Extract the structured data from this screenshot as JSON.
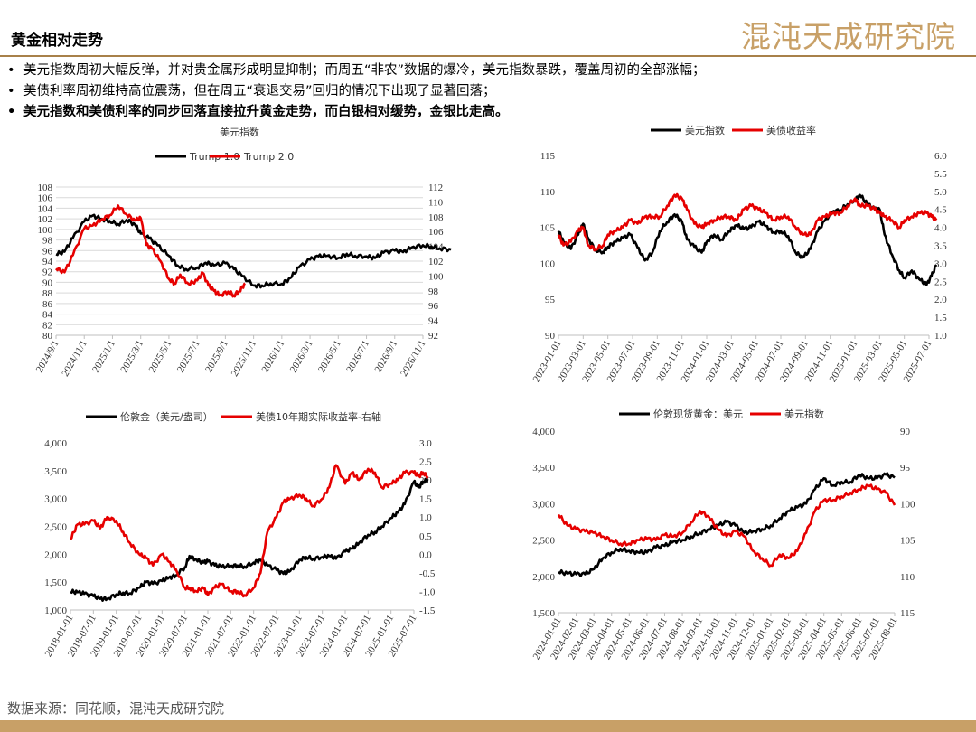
{
  "page": {
    "title": "黄金相对走势",
    "logo": "混沌天成研究院",
    "bullets": [
      "美元指数周初大幅反弹，并对贵金属形成明显抑制；而周五“非农”数据的爆冷，美元指数暴跌，覆盖周初的全部涨幅；",
      "美债利率周初维持高位震荡，但在周五“衰退交易”回归的情况下出现了显著回落；",
      "美元指数和美债利率的同步回落直接拉升黄金走势，而白银相对缓势，金银比走高。"
    ],
    "source": "数据来源：同花顺，混沌天成研究院"
  },
  "colors": {
    "black": "#000000",
    "red": "#e60000",
    "gold": "#c8a067",
    "grid": "#d9d9d9"
  },
  "chart_data": [
    {
      "type": "line",
      "title": "美元指数",
      "legend_position": "top",
      "grid": true,
      "x_ticks": [
        "2024/9/1",
        "2024/11/1",
        "2025/1/1",
        "2025/3/1",
        "2025/5/1",
        "2025/7/1",
        "2025/9/1",
        "2025/11/1",
        "2026/1/1",
        "2026/3/1",
        "2026/5/1",
        "2026/7/1",
        "2026/9/1",
        "2026/11/1"
      ],
      "y_ticks": [
        80,
        82,
        84,
        86,
        88,
        90,
        92,
        94,
        96,
        98,
        100,
        102,
        104,
        106,
        108
      ],
      "y_ticks_right": [
        92,
        94,
        96,
        98,
        100,
        102,
        104,
        106,
        108,
        110,
        112
      ],
      "ylim": [
        80,
        108
      ],
      "ylim_right": [
        92,
        112
      ],
      "series": [
        {
          "name": "Trump 1.0",
          "axis": "left",
          "color": "#000000",
          "x": [
            0,
            0.3,
            0.6,
            1,
            1.3,
            1.6,
            1.9,
            2.2,
            2.5,
            2.8,
            3,
            3.3,
            3.6,
            4,
            4.3,
            4.6,
            5,
            5.3,
            5.6,
            6,
            6.3,
            6.6,
            7,
            7.3,
            7.6,
            8,
            8.3,
            8.6,
            9,
            9.3,
            9.6,
            10,
            10.3,
            10.6,
            11,
            11.3,
            11.6,
            12,
            12.3,
            12.6,
            13,
            13.3,
            13.6,
            14
          ],
          "y": [
            95.3,
            95.8,
            98.4,
            101.5,
            102.6,
            102.0,
            101.6,
            101.0,
            101.8,
            100.9,
            99.2,
            98.3,
            97.0,
            95.0,
            93.2,
            92.5,
            92.8,
            93.7,
            93.2,
            93.6,
            92.5,
            91.2,
            89.4,
            89.4,
            89.8,
            89.7,
            90.8,
            92.8,
            94.3,
            94.9,
            95.0,
            94.6,
            95.4,
            95.0,
            94.9,
            94.6,
            95.6,
            96.0,
            95.7,
            96.6,
            97.0,
            96.8,
            96.4,
            96.2
          ]
        },
        {
          "name": "Trump 2.0",
          "axis": "right",
          "color": "#e60000",
          "x": [
            0,
            0.3,
            0.6,
            1,
            1.3,
            1.6,
            1.9,
            2.2,
            2.5,
            2.8,
            3,
            3.2,
            3.4,
            3.7,
            4,
            4.2,
            4.4,
            4.7,
            5,
            5.2,
            5.4,
            5.6,
            5.8,
            6.1,
            6.3,
            6.5,
            6.7
          ],
          "y": [
            101.0,
            100.5,
            102.8,
            106.4,
            106.8,
            107.6,
            108.2,
            109.5,
            108.3,
            107.5,
            107.8,
            104.2,
            103.7,
            102.0,
            99.6,
            99.0,
            100.2,
            98.9,
            99.4,
            100.4,
            98.7,
            98.0,
            97.4,
            97.9,
            97.4,
            98.0,
            99.0
          ]
        }
      ]
    },
    {
      "type": "line",
      "legend_position": "top",
      "grid": false,
      "x_ticks": [
        "2023-01-01",
        "2023-03-01",
        "2023-05-01",
        "2023-07-01",
        "2023-09-01",
        "2023-11-01",
        "2024-01-01",
        "2024-03-01",
        "2024-05-01",
        "2024-07-01",
        "2024-09-01",
        "2024-11-01",
        "2025-01-01",
        "2025-03-01",
        "2025-05-01",
        "2025-07-01"
      ],
      "y_ticks": [
        90,
        95,
        100,
        105,
        110,
        115
      ],
      "y_ticks_right": [
        "1.0",
        "1.5",
        "2.0",
        "2.5",
        "3.0",
        "3.5",
        "4.0",
        "4.5",
        "5.0",
        "5.5",
        "6.0"
      ],
      "ylim": [
        90,
        115
      ],
      "ylim_right": [
        1.0,
        6.0
      ],
      "series": [
        {
          "name": "美元指数",
          "axis": "left",
          "color": "#000000",
          "x": [
            0,
            0.2,
            0.5,
            0.8,
            1,
            1.2,
            1.5,
            1.8,
            2,
            2.3,
            2.6,
            2.9,
            3.2,
            3.5,
            3.8,
            4.1,
            4.4,
            4.7,
            5,
            5.2,
            5.5,
            5.8,
            6,
            6.3,
            6.6,
            6.9,
            7.2,
            7.5,
            7.8,
            8.1,
            8.4,
            8.7,
            9,
            9.3,
            9.6,
            9.9,
            10.2,
            10.5,
            10.8,
            11.1,
            11.4,
            11.7,
            12,
            12.2,
            12.5,
            12.8,
            13,
            13.2,
            13.5,
            13.8,
            14,
            14.3,
            14.6,
            14.9,
            15.1,
            15.3
          ],
          "y": [
            104.5,
            103.0,
            102.0,
            104.0,
            105.5,
            103.5,
            101.8,
            101.6,
            102.3,
            103.0,
            103.5,
            104.0,
            102.2,
            100.4,
            101.5,
            104.5,
            105.8,
            106.8,
            105.8,
            103.3,
            102.3,
            101.5,
            103.0,
            104.0,
            103.3,
            104.5,
            105.3,
            104.8,
            105.0,
            105.8,
            105.2,
            104.3,
            104.5,
            103.8,
            101.5,
            100.8,
            102.0,
            104.5,
            106.0,
            107.2,
            107.4,
            108.2,
            108.8,
            109.5,
            108.3,
            107.5,
            107.5,
            104.0,
            101.2,
            99.0,
            98.0,
            99.0,
            97.8,
            97.0,
            98.2,
            99.8
          ]
        },
        {
          "name": "美债收益率",
          "axis": "right",
          "color": "#e60000",
          "x": [
            0,
            0.2,
            0.5,
            0.8,
            1,
            1.2,
            1.5,
            1.8,
            2,
            2.3,
            2.6,
            2.9,
            3.2,
            3.5,
            3.8,
            4.1,
            4.4,
            4.7,
            5,
            5.2,
            5.5,
            5.8,
            6,
            6.3,
            6.6,
            6.9,
            7.2,
            7.5,
            7.8,
            8.1,
            8.4,
            8.7,
            9,
            9.3,
            9.6,
            9.9,
            10.2,
            10.5,
            10.8,
            11.1,
            11.4,
            11.7,
            12,
            12.2,
            12.5,
            12.8,
            13,
            13.2,
            13.5,
            13.8,
            14,
            14.3,
            14.6,
            14.9,
            15.1,
            15.3
          ],
          "y": [
            3.8,
            3.5,
            3.6,
            3.9,
            4.0,
            3.5,
            3.4,
            3.5,
            3.8,
            3.9,
            4.0,
            4.2,
            4.1,
            4.3,
            4.3,
            4.3,
            4.6,
            4.9,
            4.8,
            4.5,
            4.1,
            4.0,
            4.1,
            4.2,
            4.3,
            4.3,
            4.2,
            4.5,
            4.6,
            4.5,
            4.4,
            4.2,
            4.3,
            4.3,
            4.0,
            3.8,
            3.8,
            4.2,
            4.3,
            4.4,
            4.4,
            4.6,
            4.8,
            4.6,
            4.6,
            4.5,
            4.4,
            4.3,
            4.2,
            4.0,
            4.2,
            4.3,
            4.4,
            4.4,
            4.3,
            4.2
          ]
        }
      ]
    },
    {
      "type": "line",
      "legend_position": "top",
      "grid": false,
      "x_ticks": [
        "2018-01-01",
        "2018-07-01",
        "2019-01-01",
        "2019-07-01",
        "2020-01-01",
        "2020-07-01",
        "2021-01-01",
        "2021-07-01",
        "2022-01-01",
        "2022-07-01",
        "2023-01-01",
        "2023-07-01",
        "2024-01-01",
        "2024-07-01",
        "2025-01-01",
        "2025-07-01"
      ],
      "y_ticks": [
        "1,000",
        "1,500",
        "2,000",
        "2,500",
        "3,000",
        "3,500",
        "4,000"
      ],
      "y_ticks_right": [
        "-1.5",
        "-1.0",
        "-0.5",
        "0.0",
        "0.5",
        "1.0",
        "1.5",
        "2.0",
        "2.5",
        "3.0"
      ],
      "ylim": [
        1000,
        4000
      ],
      "ylim_right": [
        -1.5,
        3.0
      ],
      "series": [
        {
          "name": "伦敦金（美元/盎司）",
          "axis": "left",
          "color": "#000000",
          "x": [
            0,
            0.3,
            0.6,
            1,
            1.3,
            1.6,
            2,
            2.3,
            2.6,
            3,
            3.3,
            3.6,
            4,
            4.3,
            4.6,
            5,
            5.2,
            5.5,
            5.8,
            6,
            6.3,
            6.6,
            7,
            7.3,
            7.6,
            8,
            8.3,
            8.6,
            9,
            9.3,
            9.6,
            10,
            10.3,
            10.6,
            11,
            11.3,
            11.6,
            12,
            12.3,
            12.6,
            13,
            13.3,
            13.6,
            14,
            14.3,
            14.6,
            15,
            15.2,
            15.4,
            15.6
          ],
          "y": [
            1330,
            1320,
            1290,
            1250,
            1200,
            1200,
            1280,
            1310,
            1300,
            1400,
            1500,
            1470,
            1520,
            1580,
            1620,
            1770,
            1970,
            1900,
            1850,
            1870,
            1800,
            1780,
            1790,
            1800,
            1780,
            1850,
            1900,
            1800,
            1720,
            1650,
            1700,
            1900,
            1950,
            1920,
            1950,
            1970,
            1920,
            2050,
            2100,
            2200,
            2350,
            2400,
            2500,
            2650,
            2750,
            2900,
            3300,
            3200,
            3300,
            3350
          ]
        },
        {
          "name": "美债10年期实际收益率-右轴",
          "axis": "right",
          "color": "#e60000",
          "x": [
            0,
            0.3,
            0.6,
            1,
            1.3,
            1.6,
            2,
            2.3,
            2.6,
            3,
            3.3,
            3.6,
            4,
            4.3,
            4.6,
            5,
            5.2,
            5.5,
            5.8,
            6,
            6.3,
            6.6,
            7,
            7.3,
            7.6,
            8,
            8.3,
            8.6,
            9,
            9.3,
            9.6,
            10,
            10.3,
            10.6,
            11,
            11.3,
            11.6,
            12,
            12.3,
            12.6,
            13,
            13.3,
            13.6,
            14,
            14.3,
            14.6,
            15,
            15.2,
            15.4,
            15.6
          ],
          "y": [
            0.4,
            0.8,
            0.8,
            0.9,
            0.7,
            1.0,
            0.9,
            0.6,
            0.3,
            0.0,
            -0.1,
            -0.3,
            0.0,
            -0.2,
            -0.4,
            -0.9,
            -0.9,
            -1.0,
            -0.9,
            -1.1,
            -0.9,
            -0.8,
            -1.0,
            -1.0,
            -1.1,
            -0.9,
            -0.5,
            0.6,
            1.0,
            1.4,
            1.5,
            1.6,
            1.5,
            1.3,
            1.5,
            1.8,
            2.4,
            1.9,
            2.2,
            2.0,
            2.3,
            2.2,
            1.8,
            1.9,
            2.0,
            2.2,
            2.2,
            2.1,
            2.2,
            2.1
          ]
        }
      ]
    },
    {
      "type": "line",
      "legend_position": "top",
      "grid": false,
      "x_ticks": [
        "2024-01-01",
        "2024-02-01",
        "2024-03-01",
        "2024-04-01",
        "2024-05-01",
        "2024-06-01",
        "2024-07-01",
        "2024-08-01",
        "2024-09-01",
        "2024-10-01",
        "2024-11-01",
        "2024-12-01",
        "2025-01-01",
        "2025-02-01",
        "2025-03-01",
        "2025-04-01",
        "2025-05-01",
        "2025-06-01",
        "2025-07-01",
        "2025-08-01"
      ],
      "y_ticks": [
        "1,500",
        "2,000",
        "2,500",
        "3,000",
        "3,500",
        "4,000"
      ],
      "y_ticks_right": [
        "90",
        "95",
        "100",
        "105",
        "110",
        "115"
      ],
      "ylim": [
        1500,
        4000
      ],
      "ylim_right": [
        115,
        90
      ],
      "series": [
        {
          "name": "伦敦现货黄金：美元",
          "axis": "left",
          "color": "#000000",
          "x": [
            0,
            0.5,
            1,
            1.5,
            2,
            2.5,
            3,
            3.5,
            4,
            4.5,
            5,
            5.5,
            6,
            6.5,
            7,
            7.5,
            8,
            8.5,
            9,
            9.5,
            10,
            10.5,
            11,
            11.5,
            12,
            12.5,
            13,
            13.5,
            14,
            14.5,
            15,
            15.5,
            16,
            16.5,
            17,
            17.5,
            18,
            18.5,
            19
          ],
          "y": [
            2060,
            2040,
            2030,
            2030,
            2100,
            2250,
            2330,
            2380,
            2350,
            2330,
            2330,
            2400,
            2420,
            2480,
            2500,
            2550,
            2600,
            2650,
            2700,
            2750,
            2700,
            2600,
            2620,
            2650,
            2700,
            2800,
            2900,
            2950,
            3000,
            3200,
            3350,
            3250,
            3300,
            3300,
            3400,
            3350,
            3350,
            3400,
            3360
          ]
        },
        {
          "name": "美元指数",
          "axis": "right",
          "color": "#e60000",
          "x": [
            0,
            0.5,
            1,
            1.5,
            2,
            2.5,
            3,
            3.5,
            4,
            4.5,
            5,
            5.5,
            6,
            6.5,
            7,
            7.5,
            8,
            8.5,
            9,
            9.5,
            10,
            10.5,
            11,
            11.5,
            12,
            12.5,
            13,
            13.5,
            14,
            14.5,
            15,
            15.5,
            16,
            16.5,
            17,
            17.5,
            18,
            18.5,
            19
          ],
          "y": [
            101.5,
            103.0,
            103.5,
            103.8,
            104.0,
            104.5,
            105.0,
            105.5,
            105.5,
            105.0,
            104.8,
            105.0,
            104.3,
            104.5,
            104.0,
            102.5,
            101.0,
            101.8,
            103.5,
            104.5,
            103.8,
            104.5,
            106.5,
            107.5,
            108.5,
            107.0,
            107.5,
            106.5,
            104.0,
            101.0,
            99.5,
            99.5,
            99.0,
            98.5,
            98.0,
            97.5,
            98.0,
            98.5,
            100.2
          ]
        }
      ]
    }
  ]
}
